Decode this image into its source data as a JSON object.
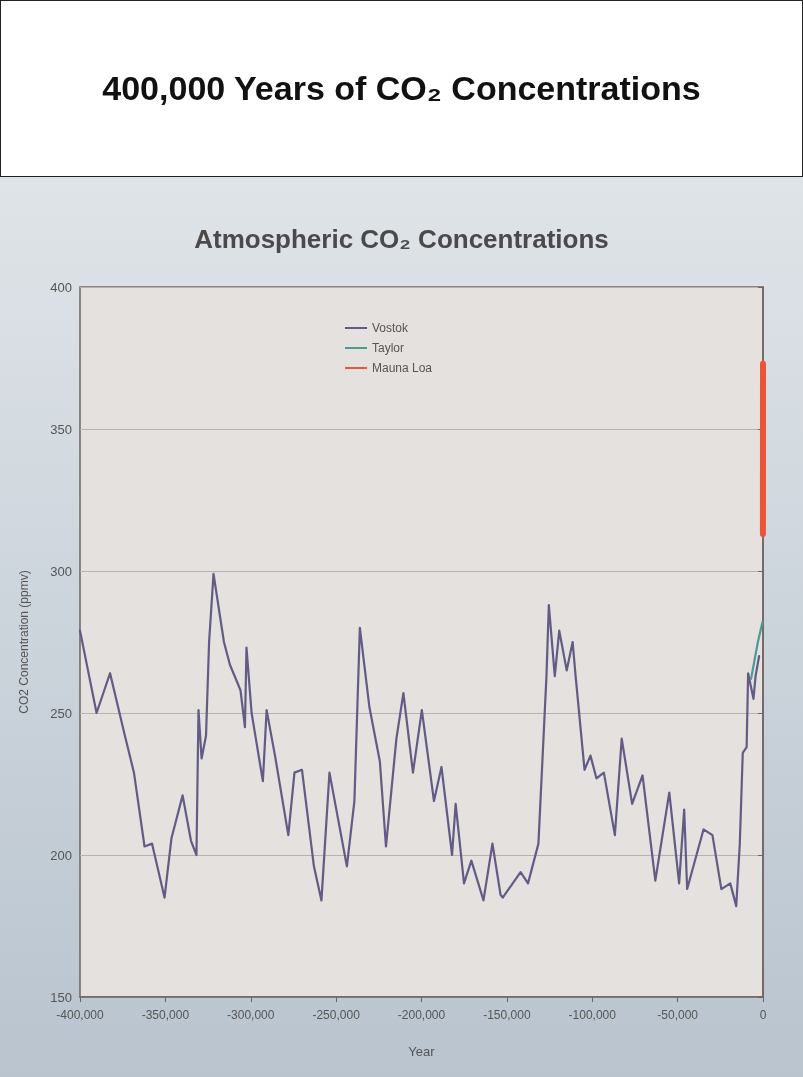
{
  "chart_data": {
    "type": "line",
    "title": "400,000 Years of CO₂ Concentrations",
    "subtitle": "Atmospheric CO₂ Concentrations",
    "xlabel": "Year",
    "ylabel": "CO2 Concentration (ppmv)",
    "xlim": [
      -400000,
      0
    ],
    "xticks": [
      {
        "value": -400000,
        "label": "-400,000"
      },
      {
        "value": -350000,
        "label": "-350,000"
      },
      {
        "value": -300000,
        "label": "-300,000"
      },
      {
        "value": -250000,
        "label": "-250,000"
      },
      {
        "value": -200000,
        "label": "-200,000"
      },
      {
        "value": -150000,
        "label": "-150,000"
      },
      {
        "value": -100000,
        "label": "-100,000"
      },
      {
        "value": -50000,
        "label": "-50,000"
      },
      0
    ],
    "ylim": [
      150,
      400
    ],
    "yticks": [
      150,
      200,
      250,
      300,
      350,
      400
    ],
    "grid": "y",
    "legend": "top",
    "line_style": "solid",
    "series": [
      {
        "name": "Vostok",
        "color": "#625b85",
        "x": [
          -400000,
          -390300,
          -382400,
          -373700,
          -368400,
          -362200,
          -357800,
          -350500,
          -346400,
          -339900,
          -335000,
          -331800,
          -330600,
          -328800,
          -326200,
          -324400,
          -321800,
          -315700,
          -312200,
          -306000,
          -303400,
          -302500,
          -299500,
          -292900,
          -290700,
          -285800,
          -278000,
          -274400,
          -270000,
          -263000,
          -258600,
          -253900,
          -243700,
          -239300,
          -236100,
          -230500,
          -224400,
          -220800,
          -214700,
          -210600,
          -205000,
          -199800,
          -192700,
          -188300,
          -182100,
          -180000,
          -175100,
          -170800,
          -163700,
          -158450,
          -153700,
          -152426,
          -141973,
          -137618,
          -131521,
          -126818,
          -125424,
          -121940,
          -119327,
          -114972,
          -111488,
          -109746,
          -104520,
          -101036,
          -97552,
          -93197,
          -86751,
          -82745,
          -76648,
          -70551,
          -63060,
          -54873,
          -49124,
          -46163,
          -44421,
          -34840,
          -29614,
          -24388,
          -19162,
          -15678,
          -13588,
          -11846,
          -9581,
          -8710,
          -5574,
          -4355,
          -2300
        ],
        "values": [
          279,
          250,
          264,
          242,
          229,
          203,
          204,
          185,
          206,
          221,
          205,
          200,
          251,
          234,
          242,
          275,
          299,
          275,
          267,
          258,
          245,
          273,
          250,
          226,
          251,
          235,
          207,
          229,
          230,
          196,
          184,
          229,
          196,
          219,
          280,
          252,
          233,
          203,
          241,
          257,
          229,
          251,
          219,
          231,
          200,
          218,
          190,
          198,
          184,
          204,
          186,
          185,
          194,
          190,
          204,
          263,
          288,
          263,
          279,
          265,
          275,
          263,
          230,
          235,
          227,
          229,
          207,
          241,
          218,
          228,
          191,
          222,
          190,
          216,
          188,
          209,
          207,
          188,
          190,
          182,
          204,
          236,
          238,
          264,
          255,
          263,
          270
        ]
      },
      {
        "name": "Taylor",
        "color": "#4e9a95",
        "x": [
          -7000,
          -3000,
          -300
        ],
        "values": [
          262,
          275,
          282
        ]
      },
      {
        "name": "Mauna Loa",
        "color": "#e8553a",
        "x": [
          -42,
          0
        ],
        "values": [
          313,
          373
        ]
      }
    ]
  }
}
